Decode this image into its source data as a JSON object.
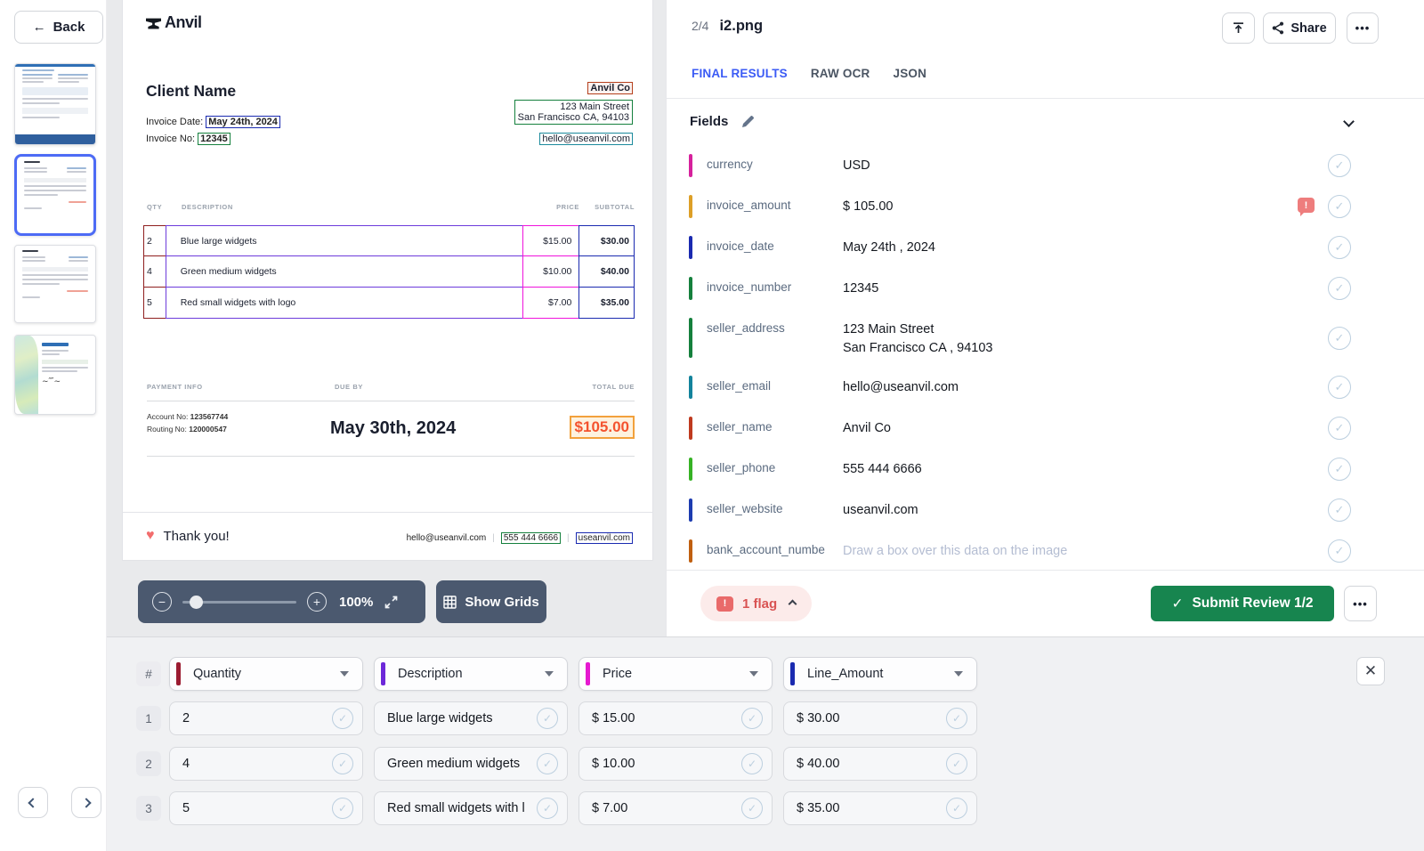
{
  "sidebar": {
    "back_label": "Back",
    "thumbnails": [
      "medical-billing-invoice",
      "anvil-invoice-selected",
      "anvil-invoice",
      "decorative-invoice"
    ]
  },
  "document": {
    "logo_text": "Anvil",
    "client_name": "Client Name",
    "invoice_date_label": "Invoice Date: ",
    "invoice_date": "May 24th, 2024",
    "invoice_no_label": "Invoice No: ",
    "invoice_no": "12345",
    "seller_name": "Anvil Co",
    "seller_address_1": "123 Main Street",
    "seller_address_2": "San Francisco CA, 94103",
    "seller_email": "hello@useanvil.com",
    "table": {
      "headers": [
        "QTY",
        "DESCRIPTION",
        "PRICE",
        "SUBTOTAL"
      ],
      "rows": [
        {
          "qty": "2",
          "description": "Blue large widgets",
          "price": "$15.00",
          "subtotal": "$30.00"
        },
        {
          "qty": "4",
          "description": "Green medium widgets",
          "price": "$10.00",
          "subtotal": "$40.00"
        },
        {
          "qty": "5",
          "description": "Red small widgets with logo",
          "price": "$7.00",
          "subtotal": "$35.00"
        }
      ]
    },
    "payment": {
      "info_header": "PAYMENT INFO",
      "due_header": "DUE BY",
      "total_header": "TOTAL DUE",
      "account_label": "Account No: ",
      "account_no": "123567744",
      "routing_label": "Routing No: ",
      "routing_no": "120000547",
      "due_date": "May 30th, 2024",
      "total_due": "$105.00"
    },
    "footer": {
      "thanks": "Thank you!",
      "email": "hello@useanvil.com",
      "phone": "555 444 6666",
      "website": "useanvil.com"
    }
  },
  "toolbar": {
    "zoom_level": "100%",
    "show_grids_label": "Show Grids"
  },
  "right_panel": {
    "page_indicator": "2/4",
    "file_name": "i2.png",
    "share_label": "Share",
    "more_label": "•••",
    "tabs": [
      {
        "label": "FINAL RESULTS"
      },
      {
        "label": "RAW OCR"
      },
      {
        "label": "JSON"
      }
    ],
    "fields_title": "Fields",
    "fields": [
      {
        "name": "currency",
        "value": "USD",
        "color": "#d6219c"
      },
      {
        "name": "invoice_amount",
        "value": "$ 105.00",
        "color": "#dd9f27",
        "flag": true
      },
      {
        "name": "invoice_date",
        "value": "May 24th , 2024",
        "color": "#1a2ab0"
      },
      {
        "name": "invoice_number",
        "value": "12345",
        "color": "#15803d"
      },
      {
        "name": "seller_address",
        "value": "123 Main Street",
        "value2": "San Francisco CA , 94103",
        "color": "#15803d"
      },
      {
        "name": "seller_email",
        "value": "hello@useanvil.com",
        "color": "#13839c"
      },
      {
        "name": "seller_name",
        "value": "Anvil Co",
        "color": "#bf3a1f"
      },
      {
        "name": "seller_phone",
        "value": "555 444 6666",
        "color": "#36b225"
      },
      {
        "name": "seller_website",
        "value": "useanvil.com",
        "color": "#1d3cb0"
      },
      {
        "name": "bank_account_numbe",
        "value": "Draw a box over this data on the image",
        "color": "#c05f10",
        "placeholder": true
      }
    ],
    "flag_count": "1 flag",
    "submit_label": "Submit Review 1/2"
  },
  "bottom_table": {
    "index_header": "#",
    "columns": [
      {
        "label": "Quantity",
        "color": "#9b1c31"
      },
      {
        "label": "Description",
        "color": "#6d28d9"
      },
      {
        "label": "Price",
        "color": "#e619d0"
      },
      {
        "label": "Line_Amount",
        "color": "#1a2ab0"
      }
    ],
    "rows": [
      {
        "index": "1",
        "quantity": "2",
        "description": "Blue large widgets",
        "price": "$ 15.00",
        "amount": "$ 30.00"
      },
      {
        "index": "2",
        "quantity": "4",
        "description": "Green medium widgets",
        "price": "$ 10.00",
        "amount": "$ 40.00"
      },
      {
        "index": "3",
        "quantity": "5",
        "description": "Red small widgets with l",
        "price": "$ 7.00",
        "amount": "$ 35.00"
      }
    ]
  }
}
